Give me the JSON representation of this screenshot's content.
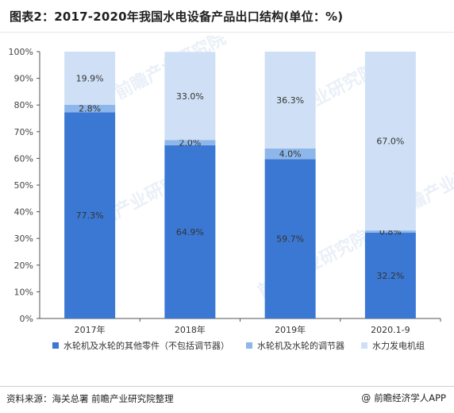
{
  "title": "图表2：2017-2020年我国水电设备产品出口结构(单位：%)",
  "footer": {
    "source": "资料来源：海关总署 前瞻产业研究院整理",
    "brand": "前瞻经济学人APP",
    "brand_icon": "at-sign-icon"
  },
  "colors": {
    "series1": "#3b78d3",
    "series2": "#8db7ea",
    "series3": "#cfe0f6",
    "axis": "#555555",
    "grid": "#dcdcdc"
  },
  "chart_data": {
    "type": "bar",
    "stacked": true,
    "title": "图表2：2017-2020年我国水电设备产品出口结构(单位：%)",
    "categories": [
      "2017年",
      "2018年",
      "2019年",
      "2020.1-9"
    ],
    "series": [
      {
        "name": "水轮机及水轮的其他零件（不包括调节器）",
        "values": [
          77.3,
          64.9,
          59.7,
          32.2
        ],
        "labels": [
          "77.3%",
          "64.9%",
          "59.7%",
          "32.2%"
        ]
      },
      {
        "name": "水轮机及水轮的调节器",
        "values": [
          2.8,
          2.0,
          4.0,
          0.8
        ],
        "labels": [
          "2.8%",
          "2.0%",
          "4.0%",
          "0.8%"
        ]
      },
      {
        "name": "水力发电机组",
        "values": [
          19.9,
          33.0,
          36.3,
          67.0
        ],
        "labels": [
          "19.9%",
          "33.0%",
          "36.3%",
          "67.0%"
        ]
      }
    ],
    "yticks": [
      "0%",
      "10%",
      "20%",
      "30%",
      "40%",
      "50%",
      "60%",
      "70%",
      "80%",
      "90%",
      "100%"
    ],
    "ylim": [
      0,
      100
    ],
    "grid": false,
    "legend_position": "bottom"
  }
}
